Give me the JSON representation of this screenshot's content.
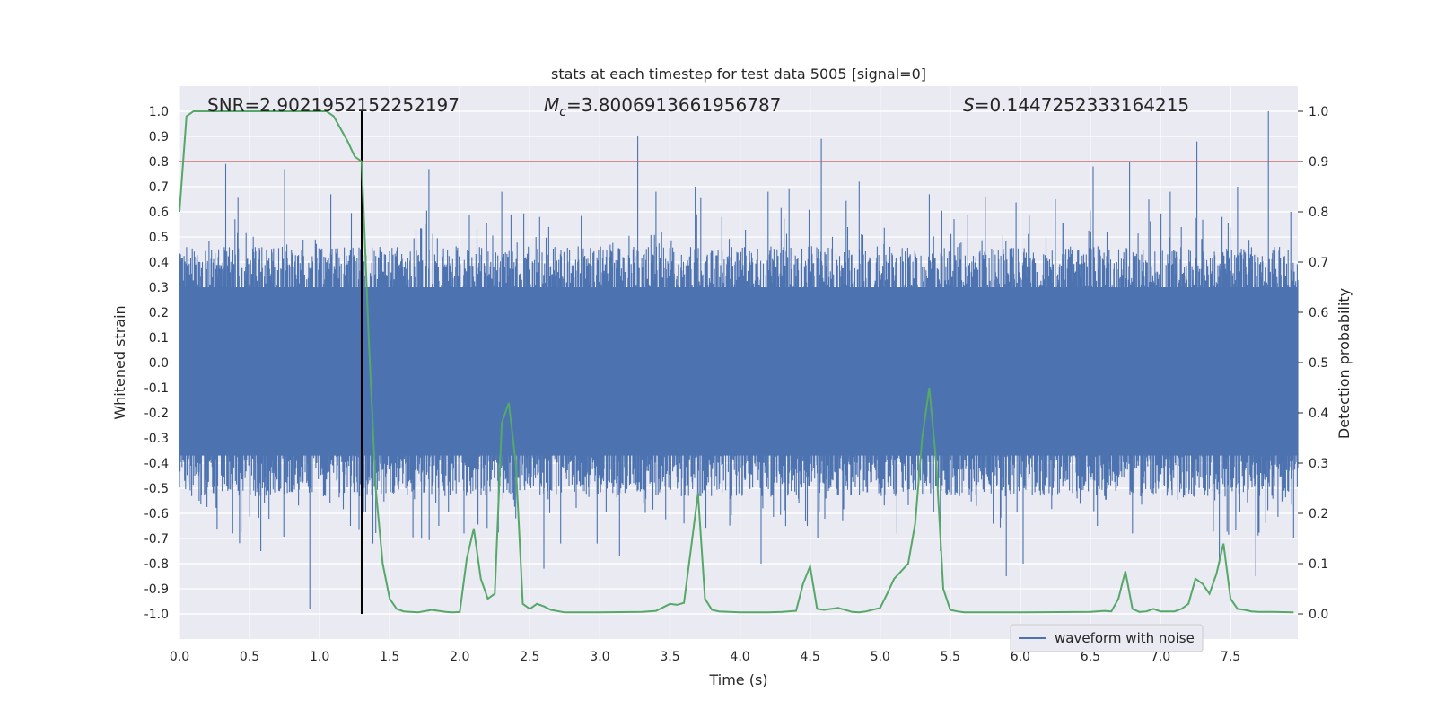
{
  "chart_data": {
    "type": "line",
    "title": "stats at each timestep for test data 5005 [signal=0]",
    "xlabel": "Time (s)",
    "ylabel": "Whitened strain",
    "y2label": "Detection probability",
    "xlim": [
      0.0,
      7.98
    ],
    "ylim": [
      -1.1,
      1.1
    ],
    "y2lim": [
      -0.05,
      1.05
    ],
    "xticks": [
      0.0,
      0.5,
      1.0,
      1.5,
      2.0,
      2.5,
      3.0,
      3.5,
      4.0,
      4.5,
      5.0,
      5.5,
      6.0,
      6.5,
      7.0,
      7.5
    ],
    "xtick_labels": [
      "0.0",
      "0.5",
      "1.0",
      "1.5",
      "2.0",
      "2.5",
      "3.0",
      "3.5",
      "4.0",
      "4.5",
      "5.0",
      "5.5",
      "6.0",
      "6.5",
      "7.0",
      "7.5"
    ],
    "yticks": [
      1.0,
      0.9,
      0.8,
      0.7,
      0.6,
      0.5,
      0.4,
      0.3,
      0.2,
      0.1,
      0.0,
      -0.1,
      -0.2,
      -0.3,
      -0.4,
      -0.5,
      -0.6,
      -0.7,
      -0.8,
      -0.9,
      -1.0
    ],
    "ytick_labels": [
      "1.0",
      "0.9",
      "0.8",
      "0.7",
      "0.6",
      "0.5",
      "0.4",
      "0.3",
      "0.2",
      "0.1",
      "0.0",
      "-0.1",
      "-0.2",
      "-0.3",
      "-0.4",
      "-0.5",
      "-0.6",
      "-0.7",
      "-0.8",
      "-0.9",
      "-1.0"
    ],
    "y2ticks": [
      1.0,
      0.9,
      0.8,
      0.7,
      0.6,
      0.5,
      0.4,
      0.3,
      0.2,
      0.1,
      0.0
    ],
    "y2tick_labels": [
      "1.0",
      "0.9",
      "0.8",
      "0.7",
      "0.6",
      "0.5",
      "0.4",
      "0.3",
      "0.2",
      "0.1",
      "0.0"
    ],
    "grid": true,
    "legend": {
      "entries": [
        "waveform with noise"
      ],
      "placement": "lower-right"
    },
    "annotations": {
      "snr": "SNR=2.9021952152252197",
      "mc_symbol": "M",
      "mc_sub": "c",
      "mc_value": "=3.8006913661956787",
      "s_symbol": "S",
      "s_value": "=0.1447252333164215"
    },
    "threshold": {
      "y2": 0.9
    },
    "marker_line": {
      "x": 1.3
    },
    "waveform": {
      "name": "waveform with noise",
      "band_upper_typical": 0.3,
      "band_lower_typical": -0.37,
      "positive_peaks": [
        [
          0.33,
          0.79
        ],
        [
          0.75,
          0.77
        ],
        [
          1.08,
          0.67
        ],
        [
          1.78,
          0.77
        ],
        [
          2.3,
          0.68
        ],
        [
          2.57,
          0.58
        ],
        [
          3.27,
          0.9
        ],
        [
          3.4,
          0.68
        ],
        [
          3.68,
          0.7
        ],
        [
          3.87,
          0.58
        ],
        [
          4.2,
          0.68
        ],
        [
          4.35,
          0.69
        ],
        [
          4.58,
          0.89
        ],
        [
          4.85,
          0.72
        ],
        [
          5.35,
          0.67
        ],
        [
          5.75,
          0.66
        ],
        [
          6.25,
          0.65
        ],
        [
          6.52,
          0.78
        ],
        [
          6.78,
          0.8
        ],
        [
          7.07,
          0.68
        ],
        [
          7.26,
          0.88
        ],
        [
          7.55,
          0.7
        ],
        [
          7.77,
          1.0
        ],
        [
          7.93,
          0.6
        ]
      ],
      "negative_peaks": [
        [
          0.14,
          -0.55
        ],
        [
          0.38,
          -0.68
        ],
        [
          0.58,
          -0.75
        ],
        [
          0.93,
          -0.98
        ],
        [
          1.22,
          -0.65
        ],
        [
          1.38,
          -0.72
        ],
        [
          1.85,
          -0.65
        ],
        [
          2.03,
          -0.68
        ],
        [
          2.4,
          -0.62
        ],
        [
          2.6,
          -0.82
        ],
        [
          2.72,
          -0.72
        ],
        [
          2.98,
          -0.72
        ],
        [
          3.14,
          -0.77
        ],
        [
          3.6,
          -0.64
        ],
        [
          4.15,
          -0.8
        ],
        [
          4.48,
          -0.65
        ],
        [
          5.12,
          -0.68
        ],
        [
          5.43,
          -0.75
        ],
        [
          5.9,
          -0.85
        ],
        [
          6.02,
          -0.8
        ],
        [
          6.55,
          -0.65
        ],
        [
          6.8,
          -0.68
        ],
        [
          7.42,
          -0.8
        ],
        [
          7.68,
          -0.85
        ],
        [
          7.95,
          -0.7
        ]
      ]
    },
    "detection_probability": {
      "x": [
        0.0,
        0.05,
        0.1,
        0.3,
        0.6,
        0.9,
        1.0,
        1.05,
        1.1,
        1.2,
        1.25,
        1.3,
        1.35,
        1.4,
        1.45,
        1.5,
        1.55,
        1.6,
        1.7,
        1.8,
        1.9,
        1.95,
        2.0,
        2.05,
        2.1,
        2.15,
        2.2,
        2.25,
        2.3,
        2.35,
        2.4,
        2.45,
        2.5,
        2.55,
        2.6,
        2.65,
        2.75,
        3.0,
        3.3,
        3.4,
        3.5,
        3.55,
        3.6,
        3.65,
        3.7,
        3.75,
        3.8,
        3.85,
        4.0,
        4.2,
        4.3,
        4.4,
        4.45,
        4.5,
        4.55,
        4.6,
        4.65,
        4.7,
        4.8,
        4.85,
        4.9,
        5.0,
        5.05,
        5.1,
        5.2,
        5.25,
        5.3,
        5.35,
        5.4,
        5.45,
        5.5,
        5.55,
        5.6,
        5.7,
        6.0,
        6.5,
        6.6,
        6.65,
        6.7,
        6.75,
        6.8,
        6.85,
        6.9,
        6.95,
        7.0,
        7.1,
        7.15,
        7.2,
        7.25,
        7.3,
        7.35,
        7.4,
        7.45,
        7.5,
        7.55,
        7.6,
        7.65,
        7.7,
        7.8,
        7.95
      ],
      "y": [
        0.8,
        0.99,
        1.0,
        1.0,
        1.0,
        1.0,
        1.0,
        1.0,
        0.99,
        0.94,
        0.91,
        0.9,
        0.55,
        0.25,
        0.1,
        0.03,
        0.01,
        0.005,
        0.003,
        0.008,
        0.004,
        0.003,
        0.004,
        0.11,
        0.17,
        0.07,
        0.03,
        0.04,
        0.38,
        0.42,
        0.3,
        0.02,
        0.01,
        0.02,
        0.015,
        0.008,
        0.003,
        0.003,
        0.004,
        0.006,
        0.02,
        0.018,
        0.022,
        0.13,
        0.24,
        0.03,
        0.008,
        0.005,
        0.003,
        0.003,
        0.004,
        0.006,
        0.06,
        0.095,
        0.01,
        0.008,
        0.01,
        0.012,
        0.004,
        0.003,
        0.005,
        0.012,
        0.04,
        0.07,
        0.1,
        0.18,
        0.35,
        0.45,
        0.3,
        0.05,
        0.008,
        0.005,
        0.003,
        0.003,
        0.003,
        0.004,
        0.006,
        0.005,
        0.03,
        0.085,
        0.01,
        0.004,
        0.005,
        0.01,
        0.005,
        0.005,
        0.01,
        0.02,
        0.07,
        0.06,
        0.04,
        0.08,
        0.14,
        0.03,
        0.01,
        0.008,
        0.005,
        0.004,
        0.004,
        0.003
      ]
    },
    "colors": {
      "waveform": "#4c72b0",
      "probability": "#55a868",
      "threshold": "#c44e52",
      "marker": "#000000",
      "plot_bg": "#eaeaf2",
      "grid": "#ffffff"
    }
  }
}
